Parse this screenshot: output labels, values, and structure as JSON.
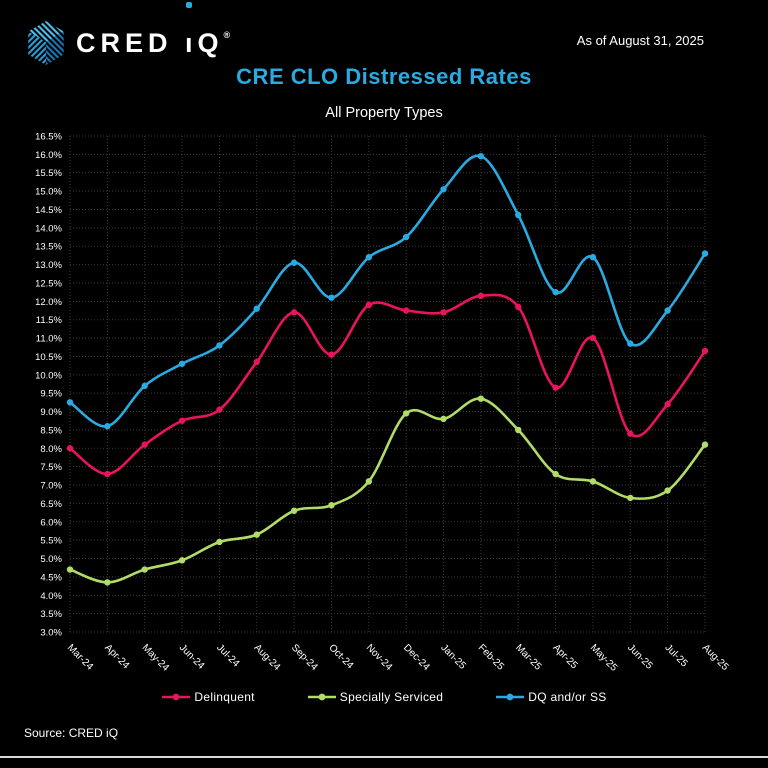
{
  "page": {
    "as_of": "As of August 31, 2025",
    "title": "CRE CLO Distressed Rates",
    "subtitle": "All Property Types",
    "source": "Source: CRED iQ"
  },
  "logo": {
    "prefix": "CRED ",
    "i_char": "ı",
    "q_char": "Q",
    "registered": "®"
  },
  "colors": {
    "background": "#000000",
    "title_accent": "#29abe2",
    "text": "#ffffff",
    "gridline": "#3a3a3a",
    "footer_rule": "#d9d9d9"
  },
  "chart_data": {
    "type": "line",
    "title": "CRE CLO Distressed Rates",
    "subtitle": "All Property Types",
    "categories": [
      "Mar-24",
      "Apr-24",
      "May-24",
      "Jun-24",
      "Jul-24",
      "Aug-24",
      "Sep-24",
      "Oct-24",
      "Nov-24",
      "Dec-24",
      "Jan-25",
      "Feb-25",
      "Mar-25",
      "Apr-25",
      "May-25",
      "Jun-25",
      "Jul-25",
      "Aug-25"
    ],
    "series": [
      {
        "name": "Delinquent",
        "color": "#e9135e",
        "values": [
          8.0,
          7.3,
          8.1,
          8.75,
          9.05,
          10.35,
          11.7,
          10.55,
          11.9,
          11.75,
          11.7,
          12.15,
          11.85,
          9.65,
          11.0,
          8.4,
          9.2,
          10.65
        ]
      },
      {
        "name": "Specially Serviced",
        "color": "#b2dc68",
        "values": [
          4.7,
          4.35,
          4.7,
          4.95,
          5.45,
          5.65,
          6.3,
          6.45,
          7.1,
          8.95,
          8.8,
          9.35,
          8.5,
          7.3,
          7.1,
          6.65,
          6.85,
          8.1
        ]
      },
      {
        "name": "DQ and/or SS",
        "color": "#29abe2",
        "values": [
          9.25,
          8.6,
          9.7,
          10.3,
          10.8,
          11.8,
          13.05,
          12.1,
          13.2,
          13.75,
          15.05,
          15.95,
          14.35,
          12.25,
          13.2,
          10.85,
          11.75,
          13.3
        ]
      }
    ],
    "ylim": [
      3.0,
      16.5
    ],
    "ytick_step": 0.5,
    "ytick_labels": [
      "3.0%",
      "3.5%",
      "4.0%",
      "4.5%",
      "5.0%",
      "5.5%",
      "6.0%",
      "6.5%",
      "7.0%",
      "7.5%",
      "8.0%",
      "8.5%",
      "9.0%",
      "9.5%",
      "10.0%",
      "10.5%",
      "11.0%",
      "11.5%",
      "12.0%",
      "12.5%",
      "13.0%",
      "13.5%",
      "14.0%",
      "14.5%",
      "15.0%",
      "15.5%",
      "16.0%",
      "16.5%"
    ],
    "grid": true,
    "smooth_lines": true,
    "legend_position": "bottom"
  }
}
